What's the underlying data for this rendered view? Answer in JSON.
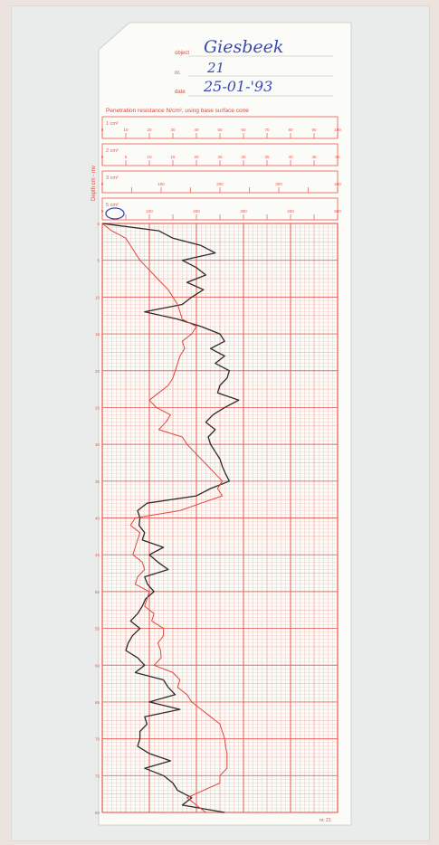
{
  "header": {
    "place_label": "object",
    "place_value": "Giesbeek",
    "number_label": "nr.",
    "number_value": "21",
    "date_label": "date",
    "date_value": "25-01-'93"
  },
  "colors": {
    "grid": "#e8584f",
    "pen_black": "#2b2b2b",
    "pen_red": "#e0463f",
    "ink_blue": "#3a4bb0",
    "paper": "#fbfbf8"
  },
  "chart_data": {
    "type": "line",
    "title": "Penetration resistance N/cm², using base surface cone",
    "ylabel": "Depth cm - mv",
    "xlabel": "",
    "x_scales": [
      {
        "label": "1 cm²",
        "ticks": [
          "0",
          "10",
          "20",
          "30",
          "40",
          "50",
          "60",
          "70",
          "80",
          "90",
          "100"
        ]
      },
      {
        "label": "2 cm²",
        "ticks": [
          "0",
          "5",
          "10",
          "15",
          "20",
          "25",
          "30",
          "35",
          "40",
          "45",
          "50"
        ]
      },
      {
        "label": "3 cm²",
        "ticks": [
          "0",
          "",
          "100",
          "",
          "200",
          "",
          "300",
          "",
          "400"
        ]
      },
      {
        "label": "5 cm²",
        "ticks": [
          "0",
          "",
          "100",
          "",
          "200",
          "",
          "300",
          "",
          "400",
          "",
          "500"
        ]
      }
    ],
    "xlim": [
      0,
      500
    ],
    "ylim": [
      0,
      80
    ],
    "y_ticks": [
      "0",
      "5",
      "10",
      "15",
      "20",
      "25",
      "30",
      "35",
      "40",
      "45",
      "50",
      "55",
      "60",
      "65",
      "70",
      "75",
      "80"
    ],
    "grid": true,
    "footer_code": "nr. 21",
    "series": [
      {
        "color": "#2b2b2b",
        "y": [
          0,
          1,
          2,
          3,
          4,
          5,
          6,
          7,
          8,
          9,
          10,
          11,
          12,
          13,
          14,
          15,
          16,
          17,
          18,
          19,
          20,
          21,
          22,
          23,
          24,
          25,
          26,
          27,
          28,
          29,
          30,
          31,
          32,
          33,
          34,
          35,
          36,
          37,
          38,
          39,
          40,
          41,
          42,
          43,
          44,
          45,
          46,
          47,
          48,
          49,
          50,
          51,
          52,
          53,
          54,
          55,
          56,
          57,
          58,
          59,
          60,
          61,
          62,
          63,
          64,
          65,
          66,
          67,
          68,
          69,
          70,
          71,
          72,
          73,
          74,
          75,
          76,
          77,
          78,
          79,
          80
        ],
        "x": [
          0,
          120,
          150,
          210,
          240,
          170,
          200,
          220,
          180,
          215,
          190,
          170,
          90,
          160,
          210,
          250,
          260,
          230,
          260,
          240,
          270,
          265,
          250,
          245,
          290,
          260,
          235,
          220,
          240,
          225,
          230,
          240,
          250,
          255,
          262,
          270,
          230,
          200,
          95,
          75,
          80,
          78,
          90,
          85,
          130,
          100,
          118,
          140,
          90,
          96,
          110,
          92,
          85,
          75,
          60,
          80,
          64,
          55,
          50,
          75,
          90,
          70,
          130,
          140,
          155,
          100,
          165,
          90,
          95,
          80,
          80,
          75,
          100,
          145,
          90,
          130,
          150,
          160,
          190,
          170,
          260
        ]
      },
      {
        "color": "#e0463f",
        "y": [
          0,
          1,
          2,
          3,
          4,
          5,
          6,
          7,
          8,
          9,
          10,
          11,
          12,
          13,
          14,
          15,
          16,
          17,
          18,
          19,
          20,
          21,
          22,
          23,
          24,
          25,
          26,
          27,
          28,
          29,
          30,
          31,
          32,
          33,
          34,
          35,
          36,
          37,
          38,
          39,
          40,
          41,
          42,
          43,
          44,
          45,
          46,
          47,
          48,
          49,
          50,
          51,
          52,
          53,
          54,
          55,
          56,
          57,
          58,
          59,
          60,
          61,
          62,
          63,
          64,
          65,
          66,
          67,
          68,
          69,
          70,
          71,
          72,
          73,
          74,
          75,
          76,
          77,
          78,
          79,
          80
        ],
        "x": [
          0,
          20,
          50,
          60,
          70,
          80,
          95,
          110,
          125,
          140,
          150,
          160,
          165,
          170,
          200,
          190,
          170,
          175,
          165,
          160,
          155,
          150,
          140,
          120,
          100,
          115,
          145,
          135,
          120,
          170,
          180,
          195,
          210,
          225,
          240,
          255,
          245,
          255,
          210,
          165,
          70,
          60,
          80,
          75,
          70,
          65,
          85,
          90,
          75,
          70,
          100,
          95,
          90,
          110,
          105,
          130,
          130,
          118,
          124,
          125,
          110,
          150,
          165,
          160,
          180,
          190,
          210,
          230,
          250,
          255,
          260,
          262,
          265,
          265,
          265,
          250,
          250,
          215,
          180,
          200,
          220
        ]
      }
    ]
  }
}
